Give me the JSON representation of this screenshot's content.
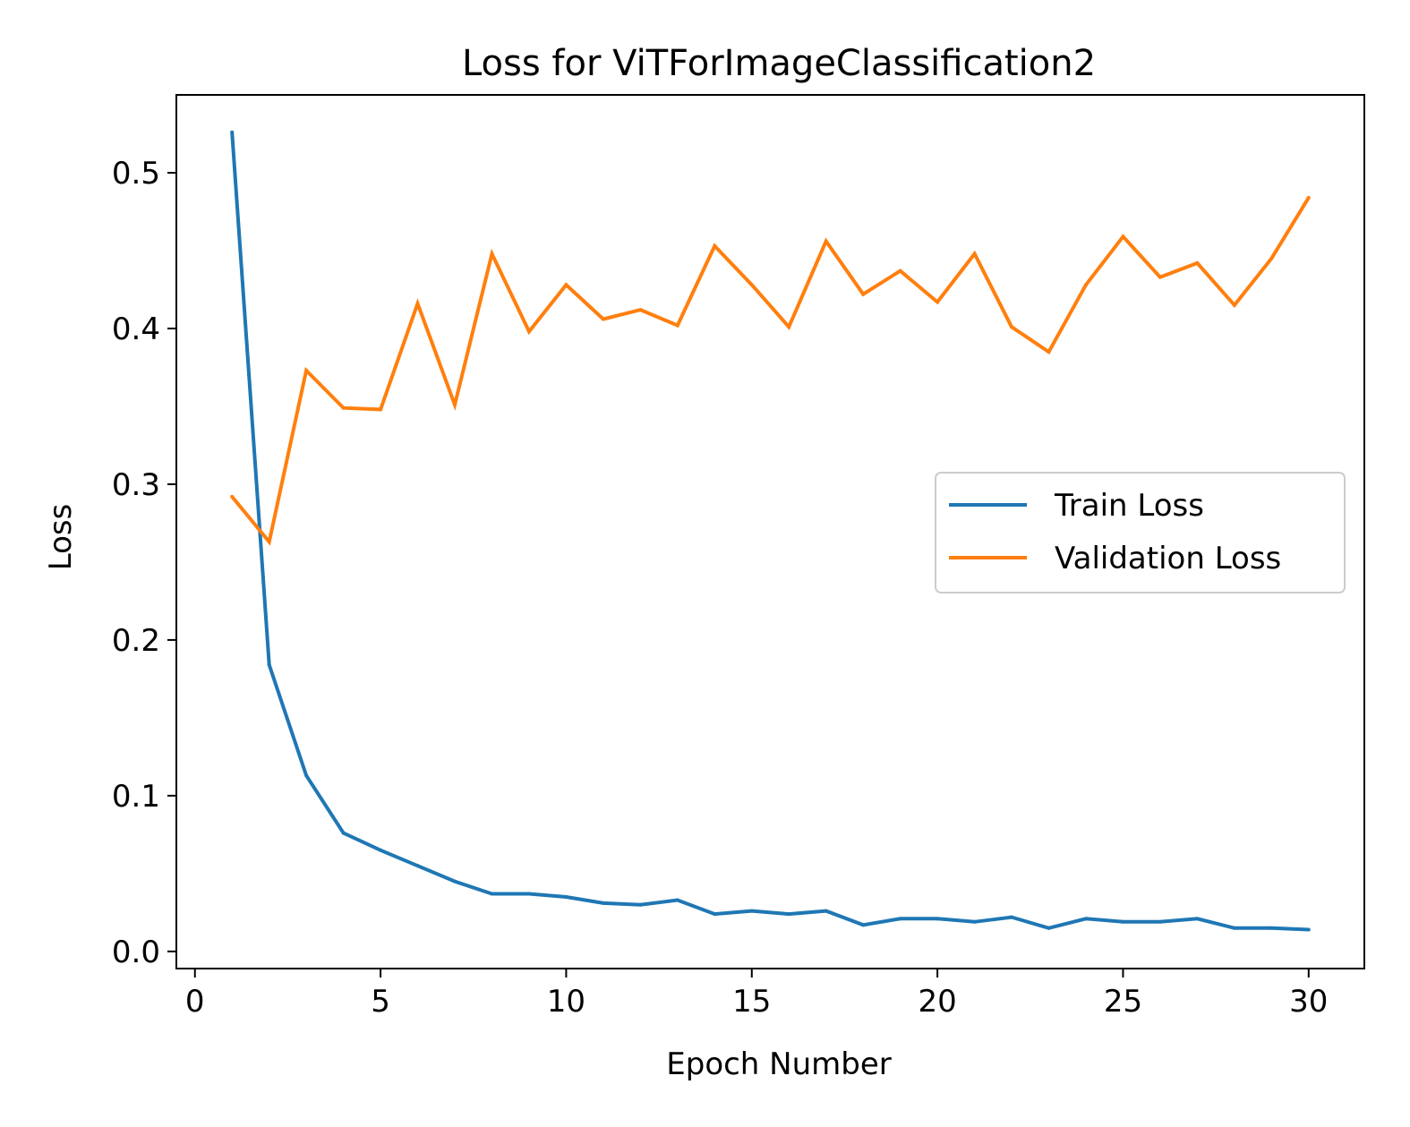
{
  "chart_data": {
    "type": "line",
    "title": "Loss for ViTForImageClassification2",
    "xlabel": "Epoch Number",
    "ylabel": "Loss",
    "xlim": [
      -0.5,
      31.5
    ],
    "ylim": [
      -0.011,
      0.55
    ],
    "xticks": [
      0,
      5,
      10,
      15,
      20,
      25,
      30
    ],
    "xtick_labels": [
      "0",
      "5",
      "10",
      "15",
      "20",
      "25",
      "30"
    ],
    "yticks": [
      0.0,
      0.1,
      0.2,
      0.3,
      0.4,
      0.5
    ],
    "ytick_labels": [
      "0.0",
      "0.1",
      "0.2",
      "0.3",
      "0.4",
      "0.5"
    ],
    "grid": false,
    "legend_position": "center-right",
    "x": [
      1,
      2,
      3,
      4,
      5,
      6,
      7,
      8,
      9,
      10,
      11,
      12,
      13,
      14,
      15,
      16,
      17,
      18,
      19,
      20,
      21,
      22,
      23,
      24,
      25,
      26,
      27,
      28,
      29,
      30
    ],
    "series": [
      {
        "name": "Train Loss",
        "color": "#1f77b4",
        "values": [
          0.526,
          0.184,
          0.113,
          0.076,
          0.065,
          0.055,
          0.045,
          0.037,
          0.037,
          0.035,
          0.031,
          0.03,
          0.033,
          0.024,
          0.026,
          0.024,
          0.026,
          0.017,
          0.021,
          0.021,
          0.019,
          0.022,
          0.015,
          0.021,
          0.019,
          0.019,
          0.021,
          0.015,
          0.015,
          0.014
        ]
      },
      {
        "name": "Validation Loss",
        "color": "#ff7f0e",
        "values": [
          0.292,
          0.263,
          0.373,
          0.349,
          0.348,
          0.416,
          0.351,
          0.448,
          0.398,
          0.428,
          0.406,
          0.412,
          0.402,
          0.453,
          0.428,
          0.401,
          0.456,
          0.422,
          0.437,
          0.417,
          0.448,
          0.401,
          0.385,
          0.428,
          0.459,
          0.433,
          0.442,
          0.415,
          0.445,
          0.484
        ]
      }
    ]
  }
}
